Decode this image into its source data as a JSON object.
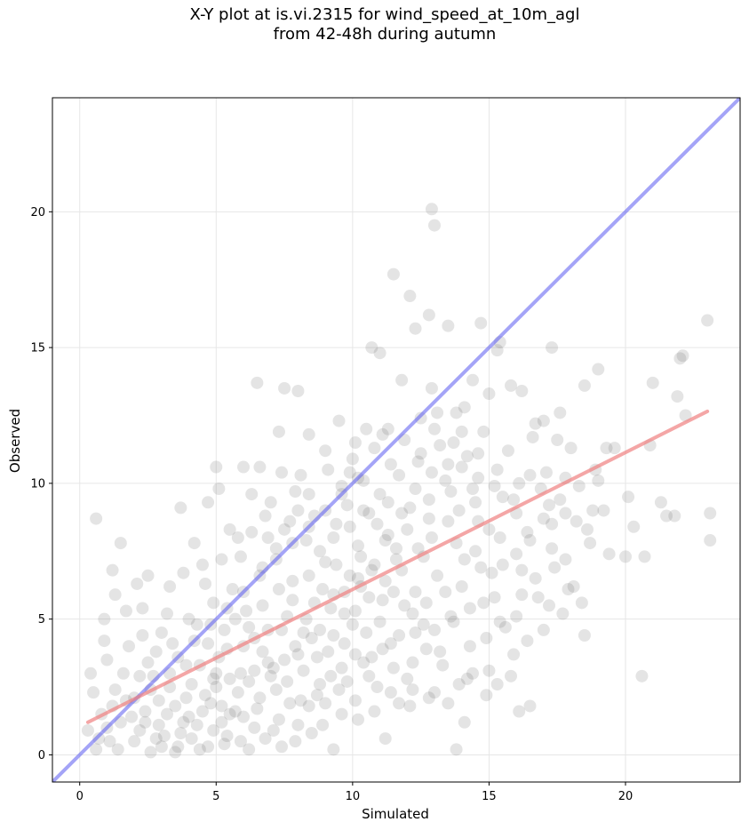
{
  "chart_data": {
    "type": "scatter",
    "title_lines": [
      "X-Y plot at is.vi.2315 for wind_speed_at_10m_agl",
      "from 42-48h during autumn"
    ],
    "xlabel": "Simulated",
    "ylabel": "Observed",
    "xlim": [
      -1,
      24.2
    ],
    "ylim": [
      -1,
      24.2
    ],
    "x_ticks": [
      0,
      5,
      10,
      15,
      20
    ],
    "y_ticks": [
      0,
      5,
      10,
      15,
      20
    ],
    "grid": true,
    "point_color": "#555555",
    "reference_line": {
      "label": "1:1",
      "color": "#5a5af0",
      "x": [
        -1,
        24.2
      ],
      "y": [
        -1,
        24.2
      ]
    },
    "fit_line": {
      "color": "#f08080",
      "x": [
        0.3,
        23.0
      ],
      "y": [
        1.2,
        12.65
      ]
    },
    "points": [
      [
        0.6,
        8.7
      ],
      [
        1.5,
        7.8
      ],
      [
        3.7,
        9.1
      ],
      [
        6.5,
        13.7
      ],
      [
        7.5,
        13.5
      ],
      [
        8.0,
        13.4
      ],
      [
        9.5,
        12.3
      ],
      [
        11.5,
        17.7
      ],
      [
        12.1,
        16.9
      ],
      [
        12.9,
        20.1
      ],
      [
        13.0,
        19.5
      ],
      [
        12.8,
        16.2
      ],
      [
        12.3,
        15.7
      ],
      [
        13.5,
        15.8
      ],
      [
        10.7,
        15.0
      ],
      [
        11.0,
        14.8
      ],
      [
        14.4,
        13.8
      ],
      [
        14.7,
        15.9
      ],
      [
        15.4,
        15.2
      ],
      [
        15.3,
        14.9
      ],
      [
        17.3,
        15.0
      ],
      [
        17.6,
        12.6
      ],
      [
        18.5,
        13.6
      ],
      [
        19.0,
        14.2
      ],
      [
        21.0,
        13.7
      ],
      [
        22.0,
        14.6
      ],
      [
        22.1,
        14.7
      ],
      [
        21.9,
        13.2
      ],
      [
        23.0,
        16.0
      ],
      [
        22.2,
        12.5
      ],
      [
        23.1,
        8.9
      ],
      [
        23.1,
        7.9
      ],
      [
        20.6,
        2.9
      ],
      [
        18.5,
        4.4
      ],
      [
        20.3,
        8.4
      ],
      [
        21.5,
        8.8
      ],
      [
        20.7,
        7.3
      ],
      [
        13.8,
        0.2
      ],
      [
        14.1,
        1.2
      ],
      [
        9.3,
        0.2
      ],
      [
        11.2,
        0.6
      ],
      [
        16.1,
        1.6
      ],
      [
        16.5,
        1.8
      ],
      [
        10.1,
        11.5
      ],
      [
        10.5,
        12.0
      ],
      [
        11.1,
        11.8
      ],
      [
        9.9,
        10.4
      ],
      [
        9.0,
        11.2
      ],
      [
        8.4,
        11.8
      ],
      [
        7.3,
        11.9
      ],
      [
        8.1,
        10.3
      ],
      [
        7.4,
        10.4
      ],
      [
        6.0,
        10.6
      ],
      [
        6.6,
        10.6
      ],
      [
        5.0,
        10.6
      ],
      [
        5.1,
        9.8
      ],
      [
        4.7,
        9.3
      ],
      [
        12.5,
        12.4
      ],
      [
        13.1,
        12.6
      ],
      [
        13.8,
        12.6
      ],
      [
        14.2,
        11.0
      ],
      [
        15.0,
        13.3
      ],
      [
        15.8,
        13.6
      ],
      [
        16.2,
        13.4
      ],
      [
        17.0,
        12.3
      ],
      [
        16.7,
        12.2
      ],
      [
        18.0,
        11.3
      ],
      [
        19.3,
        11.3
      ],
      [
        19.6,
        11.3
      ],
      [
        20.9,
        11.4
      ],
      [
        18.8,
        9.0
      ],
      [
        19.2,
        9.0
      ],
      [
        20.1,
        9.5
      ],
      [
        21.3,
        9.3
      ],
      [
        21.8,
        8.8
      ],
      [
        17.8,
        7.2
      ],
      [
        18.7,
        7.8
      ],
      [
        19.4,
        7.4
      ],
      [
        20.0,
        7.3
      ],
      [
        17.2,
        5.5
      ],
      [
        17.9,
        6.1
      ],
      [
        16.0,
        5.1
      ],
      [
        15.2,
        5.8
      ],
      [
        15.9,
        3.7
      ],
      [
        14.9,
        2.2
      ],
      [
        15.3,
        2.6
      ],
      [
        13.0,
        2.3
      ],
      [
        12.1,
        1.8
      ],
      [
        11.7,
        1.9
      ],
      [
        10.2,
        1.3
      ],
      [
        9.6,
        1.5
      ],
      [
        14.6,
        11.1
      ],
      [
        14.1,
        12.8
      ],
      [
        12.9,
        13.5
      ],
      [
        11.8,
        13.8
      ],
      [
        11.3,
        12.0
      ],
      [
        2.1,
        6.3
      ],
      [
        2.5,
        6.6
      ],
      [
        1.2,
        6.8
      ],
      [
        0.9,
        5.0
      ],
      [
        1.3,
        5.9
      ],
      [
        2.3,
        5.4
      ],
      [
        3.3,
        6.2
      ],
      [
        3.8,
        6.7
      ],
      [
        4.2,
        7.8
      ],
      [
        4.5,
        7.0
      ],
      [
        5.5,
        8.3
      ],
      [
        6.3,
        9.6
      ],
      [
        6.8,
        8.8
      ],
      [
        7.9,
        9.7
      ],
      [
        3.0,
        4.5
      ],
      [
        2.8,
        3.8
      ],
      [
        1.8,
        4.0
      ],
      [
        1.0,
        3.5
      ],
      [
        0.5,
        2.3
      ],
      [
        0.3,
        0.9
      ],
      [
        0.6,
        0.2
      ],
      [
        1.1,
        0.5
      ],
      [
        1.5,
        1.2
      ],
      [
        2.2,
        0.9
      ],
      [
        2.6,
        0.1
      ],
      [
        3.1,
        0.7
      ],
      [
        3.6,
        0.3
      ],
      [
        4.0,
        1.4
      ],
      [
        4.4,
        0.2
      ],
      [
        4.9,
        0.9
      ],
      [
        5.3,
        0.4
      ],
      [
        5.7,
        1.6
      ],
      [
        6.2,
        0.2
      ],
      [
        6.8,
        0.6
      ],
      [
        7.3,
        1.3
      ],
      [
        7.9,
        0.5
      ],
      [
        8.4,
        1.8
      ],
      [
        8.9,
        1.1
      ],
      [
        3.3,
        2.5
      ],
      [
        3.9,
        3.3
      ],
      [
        4.6,
        2.2
      ],
      [
        5.1,
        3.6
      ],
      [
        5.5,
        2.8
      ],
      [
        6.0,
        4.0
      ],
      [
        6.4,
        3.1
      ],
      [
        6.9,
        4.6
      ],
      [
        7.2,
        2.4
      ],
      [
        7.6,
        5.1
      ],
      [
        8.0,
        3.7
      ],
      [
        8.5,
        4.3
      ],
      [
        8.8,
        2.6
      ],
      [
        9.2,
        5.4
      ],
      [
        9.6,
        3.2
      ],
      [
        10.0,
        4.8
      ],
      [
        10.3,
        6.2
      ],
      [
        10.7,
        3.6
      ],
      [
        11.1,
        5.7
      ],
      [
        11.4,
        4.1
      ],
      [
        11.8,
        6.8
      ],
      [
        12.2,
        5.2
      ],
      [
        12.6,
        7.3
      ],
      [
        13.0,
        4.6
      ],
      [
        13.4,
        6.0
      ],
      [
        13.8,
        7.8
      ],
      [
        14.3,
        5.4
      ],
      [
        14.6,
        8.6
      ],
      [
        15.1,
        6.7
      ],
      [
        15.5,
        9.5
      ],
      [
        16.0,
        7.4
      ],
      [
        16.4,
        8.2
      ],
      [
        16.9,
        9.8
      ],
      [
        17.3,
        8.5
      ],
      [
        17.8,
        10.2
      ],
      [
        18.3,
        9.9
      ],
      [
        18.6,
        8.3
      ],
      [
        19.0,
        10.1
      ],
      [
        2.0,
        2.1
      ],
      [
        2.4,
        1.6
      ],
      [
        2.9,
        1.1
      ],
      [
        3.5,
        1.8
      ],
      [
        4.1,
        2.6
      ],
      [
        4.8,
        1.9
      ],
      [
        5.2,
        1.2
      ],
      [
        5.8,
        2.3
      ],
      [
        6.5,
        1.7
      ],
      [
        7.0,
        2.9
      ],
      [
        7.7,
        1.9
      ],
      [
        8.2,
        3.1
      ],
      [
        8.7,
        2.2
      ],
      [
        9.1,
        3.8
      ],
      [
        9.8,
        2.7
      ],
      [
        10.4,
        3.4
      ],
      [
        10.9,
        2.5
      ],
      [
        11.5,
        3.2
      ],
      [
        12.0,
        2.8
      ],
      [
        12.7,
        3.9
      ],
      [
        13.3,
        3.3
      ],
      [
        13.9,
        2.6
      ],
      [
        14.4,
        3.0
      ],
      [
        14.9,
        4.3
      ],
      [
        15.6,
        4.7
      ],
      [
        16.2,
        5.9
      ],
      [
        16.7,
        6.5
      ],
      [
        17.4,
        6.9
      ],
      [
        18.1,
        6.2
      ],
      [
        4.3,
        4.8
      ],
      [
        4.9,
        5.6
      ],
      [
        5.6,
        6.1
      ],
      [
        6.1,
        5.3
      ],
      [
        6.7,
        6.9
      ],
      [
        7.2,
        7.6
      ],
      [
        7.8,
        6.4
      ],
      [
        8.3,
        7.9
      ],
      [
        8.6,
        8.8
      ],
      [
        9.0,
        7.1
      ],
      [
        9.4,
        8.5
      ],
      [
        9.8,
        9.2
      ],
      [
        10.2,
        7.7
      ],
      [
        10.6,
        8.9
      ],
      [
        11.0,
        9.6
      ],
      [
        11.3,
        8.1
      ],
      [
        11.7,
        10.3
      ],
      [
        12.1,
        9.1
      ],
      [
        12.4,
        10.8
      ],
      [
        12.8,
        8.7
      ],
      [
        13.2,
        11.4
      ],
      [
        13.6,
        9.7
      ],
      [
        14.0,
        10.6
      ],
      [
        14.5,
        9.3
      ],
      [
        14.8,
        11.9
      ],
      [
        15.3,
        10.5
      ],
      [
        15.7,
        11.2
      ],
      [
        16.1,
        10.0
      ],
      [
        16.6,
        11.7
      ],
      [
        17.1,
        10.4
      ],
      [
        17.5,
        11.6
      ],
      [
        1.6,
        3.0
      ],
      [
        2.7,
        2.9
      ],
      [
        3.4,
        4.1
      ],
      [
        4.0,
        5.0
      ],
      [
        0.8,
        1.5
      ],
      [
        1.3,
        2.4
      ],
      [
        1.9,
        1.4
      ],
      [
        2.5,
        3.4
      ],
      [
        3.0,
        0.3
      ],
      [
        3.7,
        0.8
      ],
      [
        4.3,
        1.1
      ],
      [
        5.0,
        2.5
      ],
      [
        5.4,
        0.7
      ],
      [
        6.0,
        1.4
      ],
      [
        6.6,
        2.1
      ],
      [
        7.1,
        0.9
      ],
      [
        7.5,
        3.5
      ],
      [
        8.1,
        2.0
      ],
      [
        8.6,
        5.6
      ],
      [
        9.3,
        4.4
      ],
      [
        9.7,
        6.0
      ],
      [
        10.1,
        5.3
      ],
      [
        10.5,
        4.5
      ],
      [
        10.8,
        7.0
      ],
      [
        11.2,
        6.4
      ],
      [
        11.6,
        7.6
      ],
      [
        12.3,
        6.0
      ],
      [
        12.9,
        8.0
      ],
      [
        13.5,
        8.6
      ],
      [
        14.1,
        7.2
      ],
      [
        14.7,
        6.9
      ],
      [
        15.4,
        8.0
      ],
      [
        3.2,
        5.2
      ],
      [
        2.3,
        4.4
      ],
      [
        1.7,
        5.3
      ],
      [
        0.9,
        4.2
      ],
      [
        0.4,
        3.0
      ],
      [
        5.9,
        7.3
      ],
      [
        6.3,
        8.2
      ],
      [
        7.0,
        9.3
      ],
      [
        7.7,
        8.6
      ],
      [
        8.4,
        9.6
      ],
      [
        9.1,
        10.5
      ],
      [
        9.6,
        9.9
      ],
      [
        10.0,
        10.9
      ],
      [
        10.4,
        10.1
      ],
      [
        10.8,
        11.3
      ],
      [
        11.4,
        10.7
      ],
      [
        11.9,
        11.6
      ],
      [
        12.5,
        11.1
      ],
      [
        13.0,
        12.0
      ],
      [
        13.7,
        11.5
      ],
      [
        4.7,
        4.1
      ],
      [
        5.3,
        4.6
      ],
      [
        5.7,
        5.0
      ],
      [
        6.2,
        4.7
      ],
      [
        6.7,
        5.5
      ],
      [
        7.3,
        6.1
      ],
      [
        7.8,
        5.7
      ],
      [
        8.4,
        6.6
      ],
      [
        8.9,
        6.1
      ],
      [
        9.4,
        7.0
      ],
      [
        9.9,
        6.6
      ],
      [
        10.3,
        7.3
      ],
      [
        10.7,
        6.8
      ],
      [
        11.2,
        7.9
      ],
      [
        11.6,
        7.2
      ],
      [
        12.0,
        8.3
      ],
      [
        12.4,
        7.6
      ],
      [
        12.8,
        9.4
      ],
      [
        13.4,
        10.1
      ],
      [
        13.9,
        9.0
      ],
      [
        14.4,
        9.8
      ],
      [
        2.9,
        2.0
      ],
      [
        3.3,
        3.0
      ],
      [
        3.9,
        2.1
      ],
      [
        4.4,
        3.3
      ],
      [
        4.9,
        2.8
      ],
      [
        5.4,
        3.9
      ],
      [
        5.9,
        3.0
      ],
      [
        6.4,
        4.3
      ],
      [
        6.9,
        3.4
      ],
      [
        7.4,
        4.6
      ],
      [
        7.9,
        4.0
      ],
      [
        8.3,
        5.0
      ],
      [
        8.8,
        4.6
      ],
      [
        9.3,
        5.9
      ],
      [
        9.7,
        5.2
      ],
      [
        10.2,
        6.5
      ],
      [
        10.6,
        5.8
      ],
      [
        11.0,
        4.9
      ],
      [
        11.5,
        6.0
      ],
      [
        11.9,
        5.5
      ],
      [
        12.3,
        4.5
      ],
      [
        12.7,
        5.6
      ],
      [
        13.1,
        6.6
      ],
      [
        13.6,
        5.1
      ],
      [
        14.0,
        6.2
      ],
      [
        14.5,
        7.5
      ],
      [
        15.0,
        8.3
      ],
      [
        15.5,
        7.0
      ],
      [
        16.0,
        8.9
      ],
      [
        16.5,
        7.9
      ],
      [
        17.0,
        8.7
      ],
      [
        17.6,
        9.4
      ],
      [
        18.2,
        8.6
      ],
      [
        1.0,
        1.0
      ],
      [
        1.4,
        0.2
      ],
      [
        2.0,
        0.5
      ],
      [
        2.4,
        1.2
      ],
      [
        2.8,
        0.6
      ],
      [
        3.5,
        0.1
      ],
      [
        4.1,
        0.6
      ],
      [
        4.7,
        0.3
      ],
      [
        5.2,
        1.8
      ],
      [
        5.9,
        0.5
      ],
      [
        6.4,
        1.0
      ],
      [
        7.4,
        0.3
      ],
      [
        8.0,
        1.1
      ],
      [
        8.5,
        0.8
      ],
      [
        9.0,
        1.9
      ],
      [
        9.5,
        2.4
      ],
      [
        10.1,
        2.0
      ],
      [
        10.8,
        1.6
      ],
      [
        11.4,
        2.3
      ],
      [
        12.2,
        2.4
      ],
      [
        12.8,
        2.1
      ],
      [
        13.5,
        1.9
      ],
      [
        14.2,
        2.8
      ],
      [
        15.0,
        3.1
      ],
      [
        15.8,
        2.9
      ],
      [
        16.4,
        4.2
      ],
      [
        17.0,
        4.6
      ],
      [
        17.7,
        5.2
      ],
      [
        18.4,
        5.6
      ],
      [
        3.6,
        3.6
      ],
      [
        4.2,
        4.2
      ],
      [
        4.8,
        4.8
      ],
      [
        5.4,
        5.4
      ],
      [
        6.0,
        6.0
      ],
      [
        6.6,
        6.6
      ],
      [
        7.2,
        7.2
      ],
      [
        7.8,
        7.8
      ],
      [
        8.4,
        8.4
      ],
      [
        9.0,
        9.0
      ],
      [
        9.6,
        9.6
      ],
      [
        10.2,
        10.2
      ],
      [
        6.2,
        2.7
      ],
      [
        6.7,
        3.8
      ],
      [
        7.1,
        3.2
      ],
      [
        7.6,
        2.7
      ],
      [
        8.2,
        4.5
      ],
      [
        8.7,
        3.6
      ],
      [
        9.2,
        2.9
      ],
      [
        9.7,
        4.1
      ],
      [
        10.1,
        3.7
      ],
      [
        10.6,
        2.9
      ],
      [
        11.1,
        3.9
      ],
      [
        11.7,
        4.4
      ],
      [
        12.2,
        3.4
      ],
      [
        12.6,
        4.8
      ],
      [
        13.2,
        3.8
      ],
      [
        13.7,
        4.9
      ],
      [
        14.3,
        4.0
      ],
      [
        14.8,
        5.6
      ],
      [
        15.4,
        4.9
      ],
      [
        16.2,
        6.8
      ],
      [
        16.8,
        5.8
      ],
      [
        17.3,
        7.6
      ],
      [
        5.0,
        3.0
      ],
      [
        5.5,
        1.5
      ],
      [
        4.5,
        1.6
      ],
      [
        3.8,
        1.2
      ],
      [
        3.2,
        1.5
      ],
      [
        2.6,
        2.4
      ],
      [
        2.2,
        2.9
      ],
      [
        1.7,
        2.0
      ],
      [
        1.2,
        1.8
      ],
      [
        0.7,
        0.6
      ],
      [
        4.6,
        6.3
      ],
      [
        5.2,
        7.2
      ],
      [
        5.8,
        8.0
      ],
      [
        6.9,
        8.0
      ],
      [
        7.5,
        8.3
      ],
      [
        8.0,
        9.0
      ],
      [
        8.8,
        7.5
      ],
      [
        9.3,
        8.0
      ],
      [
        9.9,
        8.4
      ],
      [
        10.4,
        9.0
      ],
      [
        10.9,
        8.5
      ],
      [
        11.3,
        9.3
      ],
      [
        11.8,
        8.9
      ],
      [
        12.3,
        9.8
      ],
      [
        12.9,
        10.4
      ],
      [
        13.5,
        10.7
      ],
      [
        14.0,
        11.9
      ],
      [
        14.6,
        10.2
      ],
      [
        15.2,
        9.9
      ],
      [
        15.9,
        9.4
      ],
      [
        16.5,
        10.3
      ],
      [
        17.2,
        9.2
      ],
      [
        17.8,
        8.9
      ],
      [
        18.9,
        10.5
      ]
    ]
  }
}
